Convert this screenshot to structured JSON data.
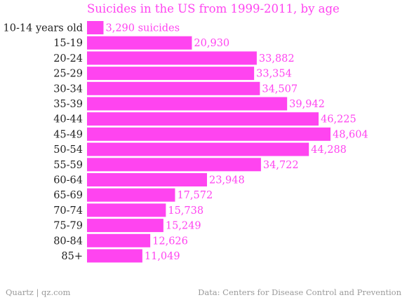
{
  "chart_data": {
    "type": "bar",
    "orientation": "horizontal",
    "title": "Suicides in the US from 1999-2011, by age",
    "categories": [
      "10-14 years old",
      "15-19",
      "20-24",
      "25-29",
      "30-34",
      "35-39",
      "40-44",
      "45-49",
      "50-54",
      "55-59",
      "60-64",
      "65-69",
      "70-74",
      "75-79",
      "80-84",
      "85+"
    ],
    "values": [
      3290,
      20930,
      33882,
      33354,
      34507,
      39942,
      46225,
      48604,
      44288,
      34722,
      23948,
      17572,
      15738,
      15249,
      12626,
      11049
    ],
    "value_labels": [
      "3,290 suicides",
      "20,930",
      "33,882",
      "33,354",
      "34,507",
      "39,942",
      "46,225",
      "48,604",
      "44,288",
      "34,722",
      "23,948",
      "17,572",
      "15,738",
      "15,249",
      "12,626",
      "11,049"
    ],
    "xlabel": "",
    "ylabel": "",
    "xlim": [
      0,
      48604
    ],
    "grid": false,
    "bar_color": "#ff44f0"
  },
  "footer": {
    "source_left": "Quartz | qz.com",
    "source_right": "Data: Centers for Disease Control and Prevention"
  }
}
